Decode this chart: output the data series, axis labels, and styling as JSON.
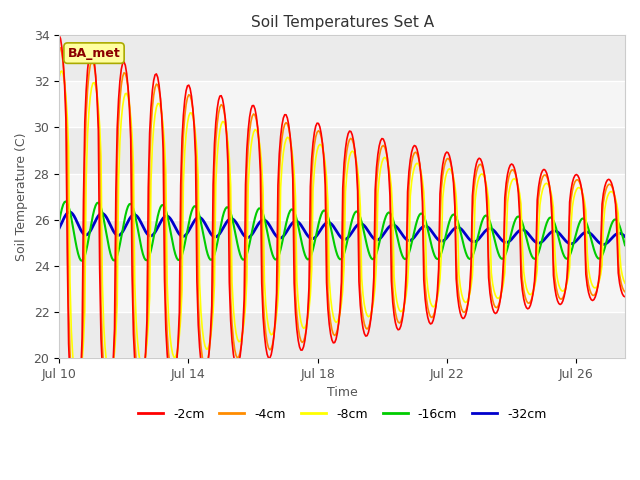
{
  "title": "Soil Temperatures Set A",
  "xlabel": "Time",
  "ylabel": "Soil Temperature (C)",
  "ylim": [
    20,
    34
  ],
  "xlim_days": [
    0,
    17.5
  ],
  "x_tick_labels": [
    "Jul 10",
    "Jul 14",
    "Jul 18",
    "Jul 22",
    "Jul 26"
  ],
  "x_tick_positions": [
    0,
    4,
    8,
    12,
    16
  ],
  "annotation": "BA_met",
  "annotation_color": "#8B0000",
  "annotation_bg": "#FFFFA0",
  "series_colors": [
    "#FF0000",
    "#FF8C00",
    "#FFFF00",
    "#00CC00",
    "#0000CC"
  ],
  "series_labels": [
    "-2cm",
    "-4cm",
    "-8cm",
    "-16cm",
    "-32cm"
  ],
  "plot_bg_light": "#FFFFFF",
  "plot_bg_dark": "#E8E8E8",
  "grid_color": "#DDDDDD",
  "title_fontsize": 11,
  "label_fontsize": 9,
  "tick_fontsize": 9,
  "legend_fontsize": 9,
  "band_yticks": [
    20,
    22,
    24,
    26,
    28,
    30,
    32,
    34
  ],
  "band_colors": [
    "#EBEBEB",
    "#F5F5F5",
    "#EBEBEB",
    "#F5F5F5",
    "#EBEBEB",
    "#F5F5F5",
    "#EBEBEB",
    "#F5F5F5"
  ]
}
